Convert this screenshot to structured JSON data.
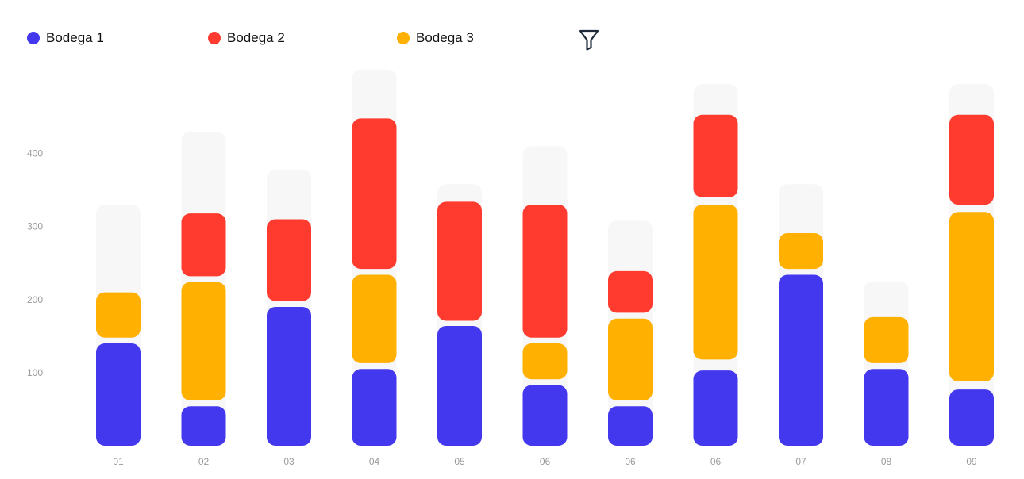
{
  "legend": [
    {
      "label": "Bodega 1",
      "color": "#4438EE"
    },
    {
      "label": "Bodega 2",
      "color": "#FF3B2F"
    },
    {
      "label": "Bodega 3",
      "color": "#FFB000"
    }
  ],
  "filter": {
    "icon": "filter-funnel-icon"
  },
  "chart_data": {
    "type": "bar",
    "stacked": true,
    "categories": [
      "01",
      "02",
      "03",
      "04",
      "05",
      "06",
      "06",
      "06",
      "07",
      "08",
      "09"
    ],
    "y_ticks": [
      "100",
      "200",
      "300",
      "400"
    ],
    "ylim": [
      0,
      500
    ],
    "grid": false,
    "legend_position": "top-left",
    "background_track_color": "#F7F7F7",
    "totals": [
      330,
      430,
      378,
      515,
      358,
      410,
      308,
      495,
      358,
      225,
      495
    ],
    "series": [
      {
        "name": "Bodega 1",
        "color": "#4438EE",
        "ranges": [
          [
            0,
            140
          ],
          [
            0,
            54
          ],
          [
            0,
            190
          ],
          [
            0,
            105
          ],
          [
            0,
            164
          ],
          [
            0,
            83
          ],
          [
            0,
            54
          ],
          [
            0,
            103
          ],
          [
            0,
            234
          ],
          [
            0,
            105
          ],
          [
            0,
            77
          ]
        ]
      },
      {
        "name": "Bodega 3",
        "color": "#FFB000",
        "ranges": [
          [
            148,
            210
          ],
          [
            62,
            224
          ],
          null,
          [
            113,
            234
          ],
          null,
          [
            91,
            140
          ],
          [
            62,
            174
          ],
          [
            118,
            330
          ],
          [
            242,
            291
          ],
          [
            113,
            176
          ],
          [
            88,
            320
          ]
        ]
      },
      {
        "name": "Bodega 2",
        "color": "#FF3B2F",
        "ranges": [
          null,
          [
            232,
            318
          ],
          [
            198,
            310
          ],
          [
            242,
            448
          ],
          [
            171,
            334
          ],
          [
            148,
            330
          ],
          [
            182,
            239
          ],
          [
            340,
            453
          ],
          null,
          null,
          [
            330,
            453
          ]
        ]
      }
    ]
  }
}
